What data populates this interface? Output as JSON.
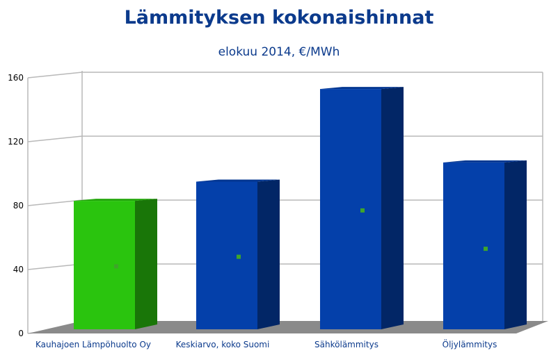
{
  "chart_data": {
    "type": "bar",
    "title": "Lämmityksen kokonaishinnat",
    "subtitle": "elokuu 2014, €/MWh",
    "categories": [
      "Kauhajoen Lämpöhuolto Oy",
      "Keskiarvo, koko Suomi",
      "Sähkölämmitys",
      "Öljylämmitys"
    ],
    "values": [
      83,
      95,
      153,
      107
    ],
    "markers": [
      42,
      48,
      77,
      53
    ],
    "bar_colors": [
      "#2ac40e",
      "#0440aa",
      "#0440aa",
      "#0440aa"
    ],
    "ylim": [
      0,
      160
    ],
    "yticks": [
      0,
      40,
      80,
      120,
      160
    ],
    "grid": true,
    "legend": "none",
    "three_d": true
  },
  "colors": {
    "title": "#0b3a8c",
    "floor": "#8a8a8a",
    "grid": "#b8b8b8",
    "marker": "#3fa52a"
  }
}
